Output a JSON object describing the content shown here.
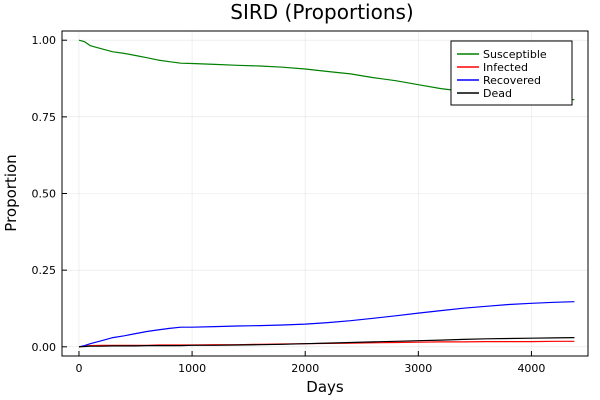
{
  "chart_data": {
    "type": "line",
    "title": "SIRD (Proportions)",
    "xlabel": "Days",
    "ylabel": "Proportion",
    "xlim": [
      -150,
      4500
    ],
    "ylim": [
      -0.03,
      1.03
    ],
    "x_ticks": [
      0,
      1000,
      2000,
      3000,
      4000
    ],
    "x_tick_labels": [
      "0",
      "1000",
      "2000",
      "3000",
      "4000"
    ],
    "y_ticks": [
      0,
      0.25,
      0.5,
      0.75,
      1.0
    ],
    "y_tick_labels": [
      "0.00",
      "0.25",
      "0.50",
      "0.75",
      "1.00"
    ],
    "grid": true,
    "legend_position": "top-right",
    "x": [
      0,
      50,
      100,
      200,
      300,
      400,
      500,
      600,
      700,
      800,
      900,
      1000,
      1200,
      1400,
      1600,
      1800,
      2000,
      2200,
      2400,
      2600,
      2800,
      3000,
      3200,
      3400,
      3600,
      3800,
      4000,
      4200,
      4380
    ],
    "series": [
      {
        "name": "Susceptible",
        "color": "#008000",
        "values": [
          1.0,
          0.995,
          0.982,
          0.972,
          0.962,
          0.957,
          0.95,
          0.943,
          0.935,
          0.93,
          0.925,
          0.924,
          0.921,
          0.918,
          0.916,
          0.912,
          0.906,
          0.898,
          0.89,
          0.878,
          0.868,
          0.855,
          0.842,
          0.833,
          0.826,
          0.82,
          0.815,
          0.81,
          0.806
        ]
      },
      {
        "name": "Infected",
        "color": "#ff0000",
        "values": [
          0.0,
          0.002,
          0.004,
          0.005,
          0.005,
          0.005,
          0.005,
          0.005,
          0.006,
          0.006,
          0.006,
          0.006,
          0.007,
          0.007,
          0.008,
          0.009,
          0.01,
          0.011,
          0.012,
          0.013,
          0.014,
          0.015,
          0.016,
          0.016,
          0.017,
          0.017,
          0.017,
          0.018,
          0.018
        ]
      },
      {
        "name": "Recovered",
        "color": "#0000ff",
        "values": [
          0.0,
          0.004,
          0.01,
          0.02,
          0.03,
          0.036,
          0.043,
          0.05,
          0.055,
          0.06,
          0.064,
          0.064,
          0.066,
          0.068,
          0.069,
          0.071,
          0.074,
          0.079,
          0.085,
          0.093,
          0.101,
          0.11,
          0.118,
          0.126,
          0.132,
          0.138,
          0.142,
          0.145,
          0.147
        ]
      },
      {
        "name": "Dead",
        "color": "#000000",
        "values": [
          0.0,
          0.001,
          0.002,
          0.002,
          0.003,
          0.003,
          0.003,
          0.004,
          0.004,
          0.004,
          0.004,
          0.005,
          0.005,
          0.006,
          0.007,
          0.008,
          0.01,
          0.012,
          0.014,
          0.016,
          0.018,
          0.02,
          0.022,
          0.024,
          0.026,
          0.027,
          0.028,
          0.029,
          0.03
        ]
      }
    ]
  }
}
